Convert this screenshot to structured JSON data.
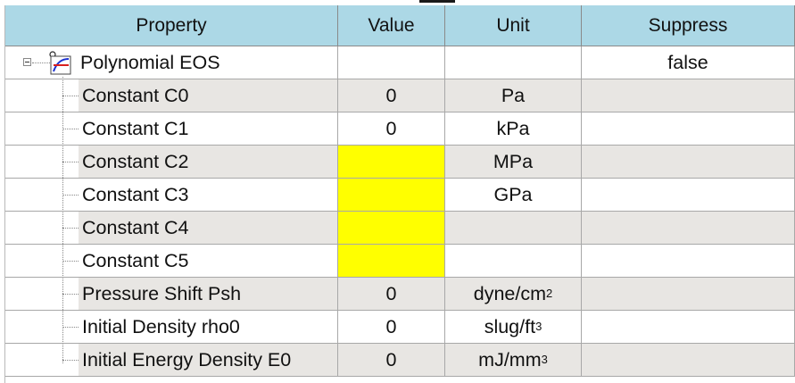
{
  "columns": {
    "property": "Property",
    "value": "Value",
    "unit": "Unit",
    "suppress": "Suppress"
  },
  "root": {
    "label": "Polynomial EOS",
    "suppress": "false",
    "icon": "polynomial-eos-icon",
    "expander": "collapse-icon"
  },
  "rows": [
    {
      "label": "Constant C0",
      "value": "0",
      "unit_base": "Pa",
      "unit_sup": "",
      "missing": false
    },
    {
      "label": "Constant C1",
      "value": "0",
      "unit_base": "kPa",
      "unit_sup": "",
      "missing": false
    },
    {
      "label": "Constant C2",
      "value": "",
      "unit_base": "MPa",
      "unit_sup": "",
      "missing": true
    },
    {
      "label": "Constant C3",
      "value": "",
      "unit_base": "GPa",
      "unit_sup": "",
      "missing": true
    },
    {
      "label": "Constant C4",
      "value": "",
      "unit_base": "",
      "unit_sup": "",
      "missing": true
    },
    {
      "label": "Constant C5",
      "value": "",
      "unit_base": "",
      "unit_sup": "",
      "missing": true
    },
    {
      "label": "Pressure Shift Psh",
      "value": "0",
      "unit_base": "dyne/cm",
      "unit_sup": "2",
      "missing": false
    },
    {
      "label": "Initial Density rho0",
      "value": "0",
      "unit_base": "slug/ft",
      "unit_sup": "3",
      "missing": false
    },
    {
      "label": "Initial Energy Density E0",
      "value": "0",
      "unit_base": "mJ/mm",
      "unit_sup": "3",
      "missing": false
    }
  ],
  "colors": {
    "header_bg": "#acd8e6",
    "gray_cell": "#e8e6e3",
    "missing_value": "#ffff00"
  }
}
